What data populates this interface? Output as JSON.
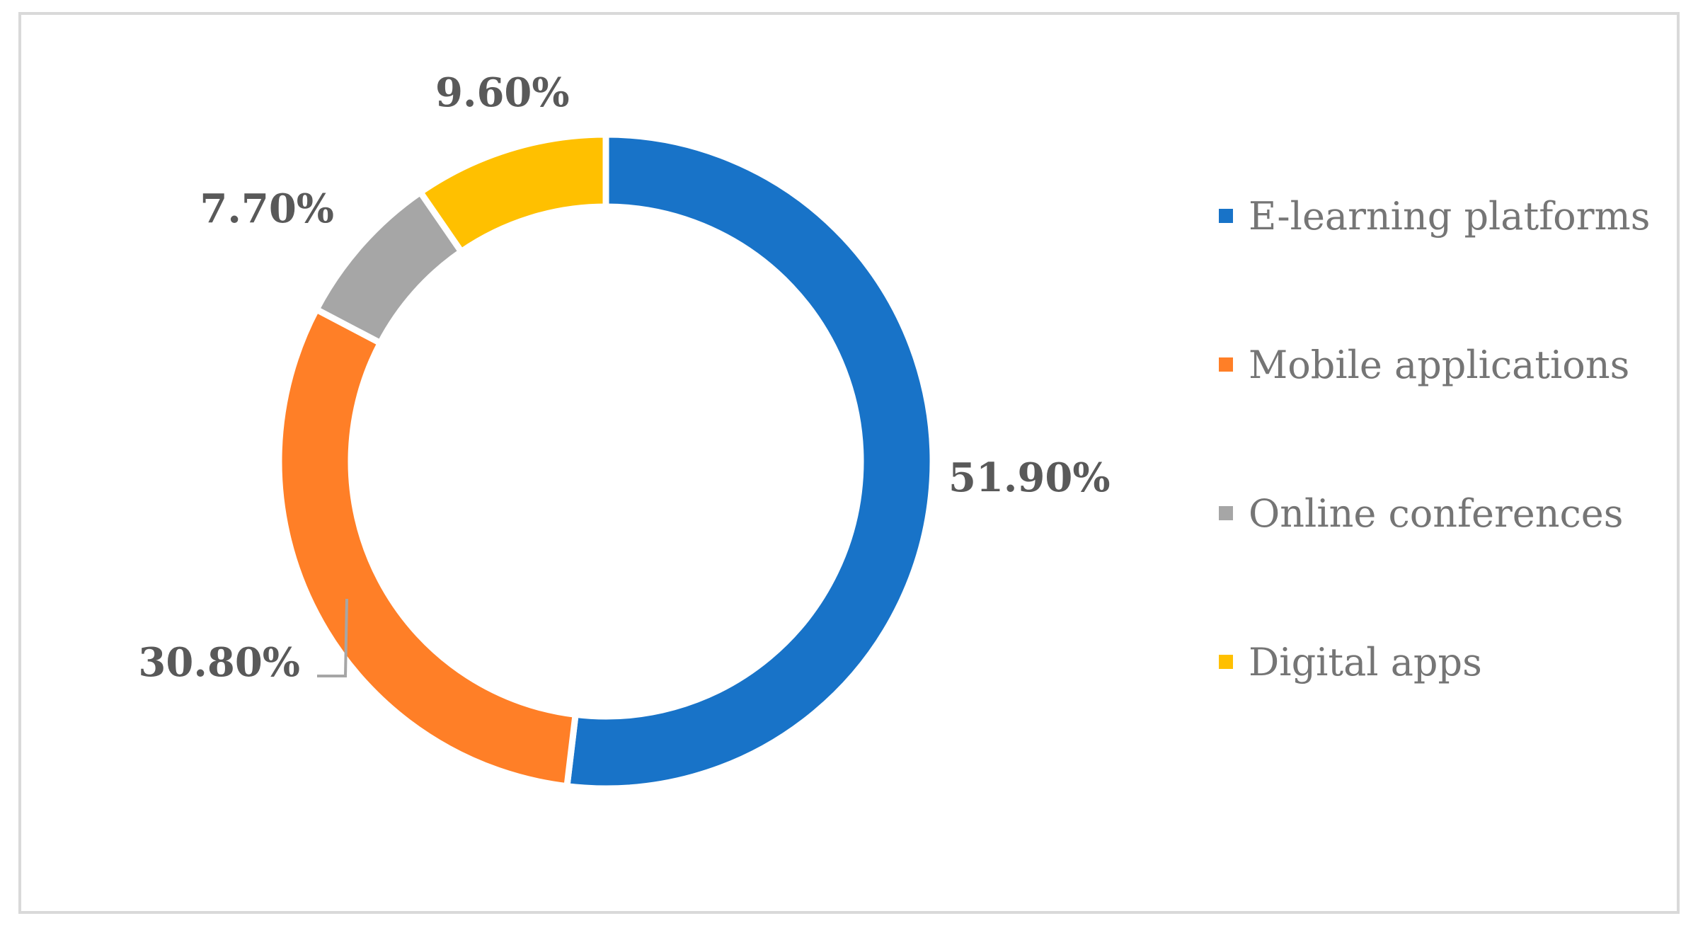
{
  "chart_data": {
    "type": "pie",
    "variant": "doughnut",
    "title": "",
    "categories": [
      "E-learning platforms",
      "Mobile applications",
      "Online conferences",
      "Digital apps"
    ],
    "values": [
      51.9,
      30.8,
      7.7,
      9.6
    ],
    "data_labels": [
      "51.90%",
      "30.80%",
      "7.70%",
      "9.60%"
    ],
    "colors": [
      "#1873C8",
      "#FF7F27",
      "#A6A6A6",
      "#FFC000"
    ],
    "legend": "right",
    "grid": false
  }
}
